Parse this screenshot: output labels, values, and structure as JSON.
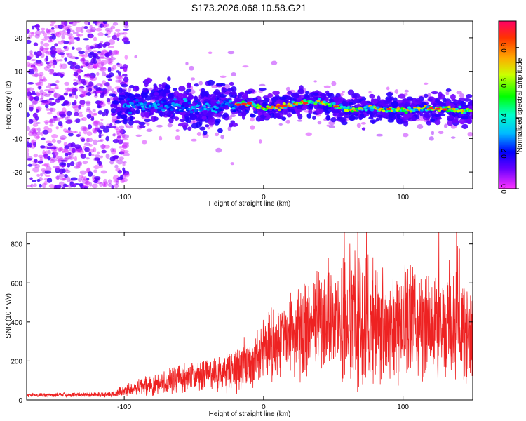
{
  "chart_data": [
    {
      "type": "heatmap",
      "title": "S173.2026.068.10.58.G21",
      "xlabel": "Height of straight line (km)",
      "ylabel": "Frequency (Hz)",
      "xlim": [
        -170,
        150
      ],
      "ylim": [
        -25,
        25
      ],
      "xticks": [
        -100,
        0,
        100
      ],
      "xtick_labels": [
        "-100",
        "0",
        "100"
      ],
      "yticks": [
        -20,
        -10,
        0,
        10,
        20
      ],
      "ytick_labels": [
        "-20",
        "-10",
        "0",
        "10",
        "20"
      ],
      "ridge": {
        "description_points_x": [
          -100,
          -80,
          -60,
          -40,
          -20,
          -10,
          0,
          20,
          40,
          60,
          80,
          100,
          120,
          148
        ],
        "description_points_y": [
          0,
          0,
          0,
          -1,
          0,
          0.5,
          -1,
          0,
          1,
          -1.5,
          -1,
          -1.5,
          -1,
          -2
        ]
      },
      "colorbar": {
        "label": "Normalized spectral amplitude",
        "range": [
          0,
          0.95
        ],
        "ticks": [
          0.0,
          0.2,
          0.4,
          0.6,
          0.8
        ],
        "tick_labels": [
          "0.0",
          "0.2",
          "0.4",
          "0.6",
          "0.8"
        ]
      }
    },
    {
      "type": "line",
      "xlabel": "Height of straight line (km)",
      "ylabel": "SNR (10 * v/v)",
      "xlim": [
        -170,
        150
      ],
      "ylim": [
        0,
        860
      ],
      "xticks": [
        -100,
        0,
        100
      ],
      "xtick_labels": [
        "-100",
        "0",
        "100"
      ],
      "yticks": [
        0,
        200,
        400,
        600,
        800
      ],
      "ytick_labels": [
        "0",
        "200",
        "400",
        "600",
        "800"
      ],
      "color": "#ee2222",
      "envelope_x": [
        -170,
        -110,
        -100,
        -80,
        -60,
        -40,
        -20,
        -10,
        0,
        20,
        40,
        60,
        80,
        100,
        120,
        150
      ],
      "envelope_mean": [
        25,
        28,
        45,
        80,
        110,
        130,
        150,
        190,
        260,
        330,
        380,
        400,
        400,
        400,
        380,
        350
      ],
      "envelope_spread": [
        8,
        10,
        25,
        45,
        55,
        70,
        90,
        110,
        140,
        180,
        220,
        260,
        240,
        230,
        220,
        200
      ]
    }
  ]
}
